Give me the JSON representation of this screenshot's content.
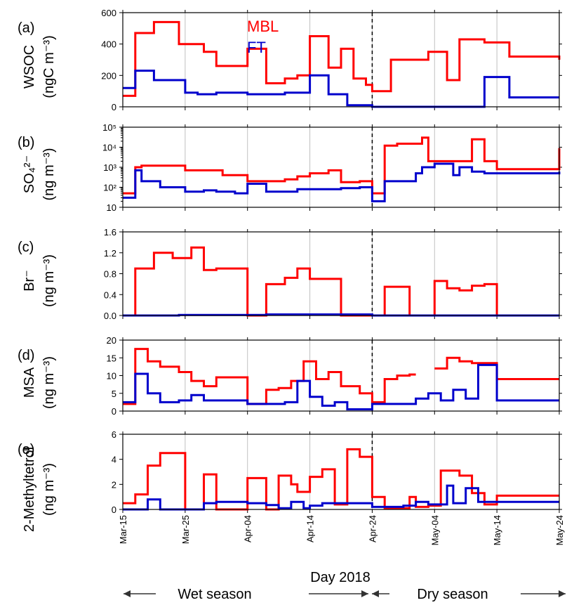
{
  "colors": {
    "mbl": "#ff0000",
    "ft": "#0000cc",
    "grid": "#c0c0c0",
    "axis": "#000000"
  },
  "legend": {
    "mbl": "MBL",
    "ft": "FT"
  },
  "xaxis": {
    "title": "Day 2018",
    "range": [
      "2018-03-15",
      "2018-05-24"
    ],
    "ticks": [
      "Mar-15",
      "Mar-25",
      "Apr-04",
      "Apr-14",
      "Apr-24",
      "May-04",
      "May-14",
      "May-24"
    ],
    "divider": "2018-04-24"
  },
  "seasons": {
    "wet": "Wet season",
    "dry": "Dry season"
  },
  "chart_data": [
    {
      "type": "line",
      "step": true,
      "panel": "(a)",
      "ylabel": [
        "WSOC",
        "(ngC m⁻³)"
      ],
      "ylim": [
        0,
        600
      ],
      "yticks": [
        "0",
        "200",
        "400",
        "600"
      ],
      "scale": "linear",
      "series": [
        {
          "name": "MBL",
          "x": [
            "2018-03-15",
            "2018-03-17",
            "2018-03-20",
            "2018-03-24",
            "2018-03-28",
            "2018-03-30",
            "2018-04-04",
            "2018-04-07",
            "2018-04-10",
            "2018-04-12",
            "2018-04-14",
            "2018-04-17",
            "2018-04-19",
            "2018-04-21",
            "2018-04-23",
            "2018-04-24",
            "2018-04-27",
            "2018-05-01",
            "2018-05-03",
            "2018-05-06",
            "2018-05-08",
            "2018-05-12",
            "2018-05-16",
            "2018-05-24"
          ],
          "y": [
            70,
            470,
            540,
            400,
            350,
            260,
            370,
            150,
            180,
            200,
            450,
            250,
            370,
            180,
            140,
            100,
            300,
            300,
            350,
            170,
            430,
            410,
            320,
            300
          ]
        },
        {
          "name": "FT",
          "x": [
            "2018-03-15",
            "2018-03-17",
            "2018-03-20",
            "2018-03-25",
            "2018-03-27",
            "2018-03-30",
            "2018-04-04",
            "2018-04-07",
            "2018-04-10",
            "2018-04-12",
            "2018-04-14",
            "2018-04-17",
            "2018-04-20",
            "2018-04-24",
            "2018-04-27",
            "2018-05-12",
            "2018-05-16",
            "2018-05-24"
          ],
          "y": [
            120,
            230,
            170,
            90,
            80,
            90,
            80,
            80,
            90,
            90,
            200,
            80,
            10,
            0,
            0,
            190,
            60,
            60
          ]
        }
      ]
    },
    {
      "type": "line",
      "step": true,
      "panel": "(b)",
      "ylabel": [
        "SO₄²⁻",
        "(ng m⁻³)"
      ],
      "ylim": [
        10,
        100000
      ],
      "yticks": [
        "10",
        "10²",
        "10³",
        "10⁴",
        "10⁵"
      ],
      "scale": "log",
      "series": [
        {
          "name": "MBL",
          "x": [
            "2018-03-15",
            "2018-03-17",
            "2018-03-18",
            "2018-03-25",
            "2018-03-31",
            "2018-04-04",
            "2018-04-07",
            "2018-04-10",
            "2018-04-12",
            "2018-04-14",
            "2018-04-17",
            "2018-04-19",
            "2018-04-22",
            "2018-04-24",
            "2018-04-26",
            "2018-04-28",
            "2018-05-02",
            "2018-05-03",
            "2018-05-08",
            "2018-05-10",
            "2018-05-12",
            "2018-05-14",
            "2018-05-24"
          ],
          "y": [
            50,
            1000,
            1200,
            700,
            400,
            200,
            200,
            250,
            350,
            500,
            700,
            180,
            200,
            50,
            12000,
            15000,
            30000,
            2000,
            2000,
            25000,
            2000,
            800,
            9000
          ]
        },
        {
          "name": "FT",
          "x": [
            "2018-03-15",
            "2018-03-17",
            "2018-03-18",
            "2018-03-21",
            "2018-03-25",
            "2018-03-28",
            "2018-03-30",
            "2018-04-02",
            "2018-04-04",
            "2018-04-07",
            "2018-04-10",
            "2018-04-12",
            "2018-04-14",
            "2018-04-17",
            "2018-04-19",
            "2018-04-22",
            "2018-04-24",
            "2018-04-26",
            "2018-04-28",
            "2018-05-01",
            "2018-05-02",
            "2018-05-04",
            "2018-05-07",
            "2018-05-08",
            "2018-05-10",
            "2018-05-12",
            "2018-05-14",
            "2018-05-24"
          ],
          "y": [
            30,
            700,
            200,
            100,
            60,
            70,
            60,
            50,
            150,
            60,
            60,
            80,
            80,
            80,
            90,
            100,
            20,
            200,
            200,
            500,
            1000,
            1500,
            400,
            1000,
            600,
            500,
            500,
            600
          ]
        }
      ]
    },
    {
      "type": "line",
      "step": true,
      "panel": "(c)",
      "ylabel": [
        "Br⁻",
        "(ng m⁻³)"
      ],
      "ylim": [
        0,
        1.6
      ],
      "yticks": [
        "0.0",
        "0.4",
        "0.8",
        "1.2",
        "1.6"
      ],
      "scale": "linear",
      "series": [
        {
          "name": "MBL",
          "x": [
            "2018-03-15",
            "2018-03-17",
            "2018-03-20",
            "2018-03-23",
            "2018-03-26",
            "2018-03-28",
            "2018-03-30",
            "2018-04-02",
            "2018-04-04",
            "2018-04-07",
            "2018-04-10",
            "2018-04-12",
            "2018-04-14",
            "2018-04-17",
            "2018-04-19",
            "2018-04-26",
            "2018-04-30",
            "2018-05-04",
            "2018-05-06",
            "2018-05-08",
            "2018-05-10",
            "2018-05-12",
            "2018-05-14",
            "2018-05-24"
          ],
          "y": [
            0,
            0.9,
            1.2,
            1.1,
            1.3,
            0.87,
            0.9,
            0.9,
            0,
            0.6,
            0.72,
            0.9,
            0.7,
            0.7,
            0,
            0.55,
            0,
            0.66,
            0.52,
            0.48,
            0.57,
            0.6,
            0,
            0
          ]
        },
        {
          "name": "FT",
          "x": [
            "2018-03-15",
            "2018-03-24",
            "2018-04-04",
            "2018-04-07",
            "2018-04-24",
            "2018-05-24"
          ],
          "y": [
            0,
            0.01,
            0.01,
            0.02,
            0,
            0
          ]
        }
      ]
    },
    {
      "type": "line",
      "step": true,
      "panel": "(d)",
      "ylabel": [
        "MSA",
        "(ng m⁻³)"
      ],
      "ylim": [
        0,
        20
      ],
      "yticks": [
        "0",
        "5",
        "10",
        "15",
        "20"
      ],
      "scale": "linear",
      "series": [
        {
          "name": "MBL",
          "x": [
            "2018-03-15",
            "2018-03-17",
            "2018-03-19",
            "2018-03-21",
            "2018-03-24",
            "2018-03-26",
            "2018-03-28",
            "2018-03-30",
            "2018-04-04",
            "2018-04-07",
            "2018-04-09",
            "2018-04-11",
            "2018-04-13",
            "2018-04-15",
            "2018-04-17",
            "2018-04-19",
            "2018-04-22",
            "2018-04-24",
            "2018-04-26",
            "2018-04-28",
            "2018-04-30",
            "2018-05-01"
          ],
          "y": [
            2,
            17.5,
            14,
            12.5,
            11,
            8.5,
            7,
            9.5,
            2,
            6,
            6.5,
            8.5,
            14,
            9,
            11,
            7,
            5,
            2.5,
            9,
            10,
            10.3,
            10.3
          ]
        },
        {
          "name": "MBL",
          "x": [
            "2018-05-04",
            "2018-05-06",
            "2018-05-08",
            "2018-05-10",
            "2018-05-14",
            "2018-05-24"
          ],
          "y": [
            12,
            15,
            14,
            13.5,
            9,
            9
          ]
        },
        {
          "name": "FT",
          "x": [
            "2018-03-15",
            "2018-03-17",
            "2018-03-19",
            "2018-03-21",
            "2018-03-24",
            "2018-03-26",
            "2018-03-28",
            "2018-03-30",
            "2018-04-04",
            "2018-04-07",
            "2018-04-10",
            "2018-04-12",
            "2018-04-14",
            "2018-04-16",
            "2018-04-18",
            "2018-04-20",
            "2018-04-24",
            "2018-04-28",
            "2018-05-01",
            "2018-05-03",
            "2018-05-05",
            "2018-05-07",
            "2018-05-09",
            "2018-05-11",
            "2018-05-14",
            "2018-05-24"
          ],
          "y": [
            2.5,
            10.5,
            5,
            2.5,
            3,
            4.5,
            3,
            3,
            2,
            2,
            2.5,
            8.5,
            4,
            1.5,
            2.5,
            0.5,
            2,
            2,
            3.5,
            5,
            3,
            6,
            3.5,
            13,
            3,
            3
          ]
        }
      ]
    },
    {
      "type": "line",
      "step": true,
      "panel": "(e)",
      "ylabel": [
        "2-Methyltetrol",
        "(ng m⁻³)"
      ],
      "ylim": [
        0,
        6
      ],
      "yticks": [
        "0",
        "2",
        "4",
        "6"
      ],
      "scale": "linear",
      "series": [
        {
          "name": "MBL",
          "x": [
            "2018-03-15",
            "2018-03-17",
            "2018-03-19",
            "2018-03-21",
            "2018-03-23",
            "2018-03-25",
            "2018-03-28",
            "2018-03-30",
            "2018-04-01",
            "2018-04-04",
            "2018-04-07",
            "2018-04-09",
            "2018-04-11",
            "2018-04-12",
            "2018-04-14",
            "2018-04-16",
            "2018-04-18",
            "2018-04-20",
            "2018-04-22",
            "2018-04-24",
            "2018-04-26",
            "2018-04-30",
            "2018-05-01",
            "2018-05-03",
            "2018-05-05",
            "2018-05-08",
            "2018-05-10",
            "2018-05-12",
            "2018-05-14",
            "2018-05-24"
          ],
          "y": [
            0.5,
            1.2,
            3.5,
            4.5,
            4.5,
            0,
            2.8,
            0,
            0,
            2.5,
            0,
            2.7,
            2,
            1.4,
            2.6,
            3.2,
            0.4,
            4.8,
            4.2,
            1,
            0.1,
            1,
            0.2,
            0.3,
            3.1,
            2.7,
            1.3,
            0.4,
            1.1,
            1.1
          ]
        },
        {
          "name": "FT",
          "x": [
            "2018-03-15",
            "2018-03-19",
            "2018-03-21",
            "2018-03-28",
            "2018-03-30",
            "2018-04-04",
            "2018-04-07",
            "2018-04-09",
            "2018-04-11",
            "2018-04-13",
            "2018-04-14",
            "2018-04-16",
            "2018-04-24",
            "2018-04-29",
            "2018-05-01",
            "2018-05-03",
            "2018-05-06",
            "2018-05-07",
            "2018-05-09",
            "2018-05-11",
            "2018-05-14",
            "2018-05-24"
          ],
          "y": [
            0,
            0.8,
            0,
            0.5,
            0.6,
            0.5,
            0.35,
            0.1,
            0.6,
            0.1,
            0.3,
            0.5,
            0.2,
            0.3,
            0.6,
            0.4,
            1.9,
            0.5,
            1.7,
            0.6,
            0.6,
            0.6
          ]
        }
      ]
    }
  ]
}
